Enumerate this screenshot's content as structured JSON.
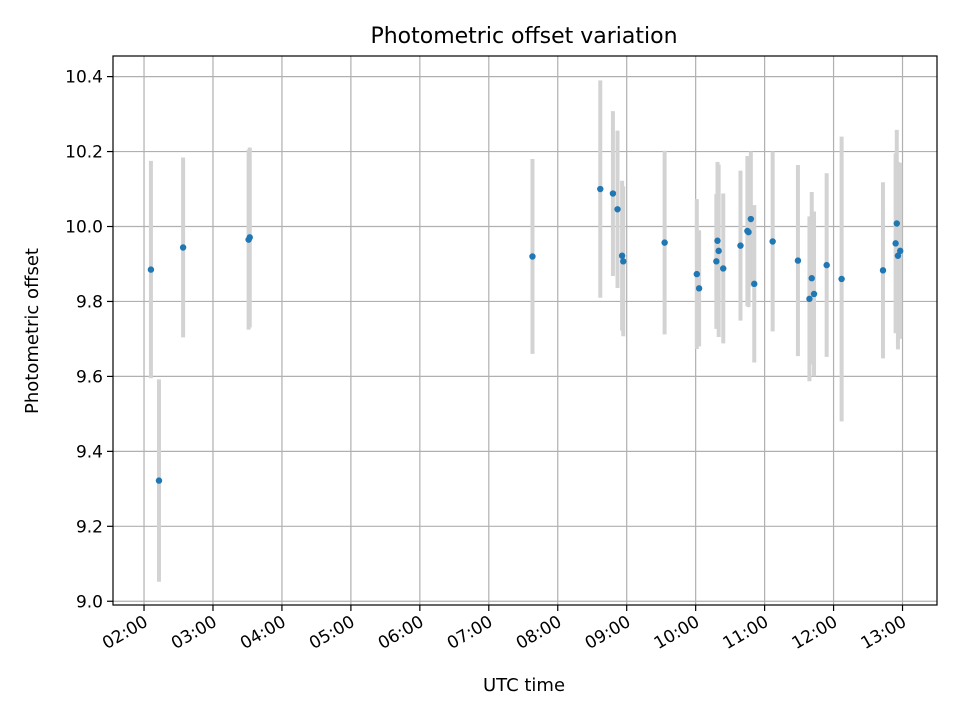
{
  "chart_data": {
    "type": "scatter",
    "title": "Photometric offset variation",
    "xlabel": "UTC time",
    "ylabel": "Photometric offset",
    "xlim": [
      "01:33",
      "13:30"
    ],
    "ylim": [
      8.99,
      10.455
    ],
    "x_ticks": [
      "02:00",
      "03:00",
      "04:00",
      "05:00",
      "06:00",
      "07:00",
      "08:00",
      "09:00",
      "10:00",
      "11:00",
      "12:00",
      "13:00"
    ],
    "y_ticks": [
      "9.0",
      "9.2",
      "9.4",
      "9.6",
      "9.8",
      "10.0",
      "10.2",
      "10.4"
    ],
    "grid": true,
    "point_color": "#1f77b4",
    "errorbar_color": "#d3d3d3",
    "points": [
      {
        "x": "02:06",
        "y": 9.885,
        "err": 0.29
      },
      {
        "x": "02:13",
        "y": 9.322,
        "err": 0.27
      },
      {
        "x": "02:34",
        "y": 9.944,
        "err": 0.24
      },
      {
        "x": "03:31",
        "y": 9.965,
        "err": 0.24
      },
      {
        "x": "03:32",
        "y": 9.971,
        "err": 0.24
      },
      {
        "x": "07:38",
        "y": 9.92,
        "err": 0.26
      },
      {
        "x": "08:37",
        "y": 10.1,
        "err": 0.29
      },
      {
        "x": "08:48",
        "y": 10.088,
        "err": 0.22
      },
      {
        "x": "08:52",
        "y": 10.046,
        "err": 0.21
      },
      {
        "x": "08:56",
        "y": 9.922,
        "err": 0.2
      },
      {
        "x": "08:57",
        "y": 9.907,
        "err": 0.2
      },
      {
        "x": "09:33",
        "y": 9.957,
        "err": 0.245
      },
      {
        "x": "10:01",
        "y": 9.873,
        "err": 0.2
      },
      {
        "x": "10:03",
        "y": 9.835,
        "err": 0.155
      },
      {
        "x": "10:18",
        "y": 9.907,
        "err": 0.18
      },
      {
        "x": "10:19",
        "y": 9.962,
        "err": 0.21
      },
      {
        "x": "10:20",
        "y": 9.935,
        "err": 0.23
      },
      {
        "x": "10:24",
        "y": 9.888,
        "err": 0.2
      },
      {
        "x": "10:39",
        "y": 9.949,
        "err": 0.2
      },
      {
        "x": "10:45",
        "y": 9.988,
        "err": 0.2
      },
      {
        "x": "10:46",
        "y": 9.985,
        "err": 0.2
      },
      {
        "x": "10:48",
        "y": 10.02,
        "err": 0.18
      },
      {
        "x": "10:51",
        "y": 9.847,
        "err": 0.21
      },
      {
        "x": "11:07",
        "y": 9.96,
        "err": 0.24
      },
      {
        "x": "11:29",
        "y": 9.909,
        "err": 0.255
      },
      {
        "x": "11:39",
        "y": 9.807,
        "err": 0.22
      },
      {
        "x": "11:41",
        "y": 9.862,
        "err": 0.23
      },
      {
        "x": "11:43",
        "y": 9.82,
        "err": 0.22
      },
      {
        "x": "11:54",
        "y": 9.897,
        "err": 0.245
      },
      {
        "x": "12:07",
        "y": 9.86,
        "err": 0.38
      },
      {
        "x": "12:43",
        "y": 9.883,
        "err": 0.235
      },
      {
        "x": "12:54",
        "y": 9.955,
        "err": 0.24
      },
      {
        "x": "12:55",
        "y": 10.008,
        "err": 0.25
      },
      {
        "x": "12:56",
        "y": 9.922,
        "err": 0.25
      },
      {
        "x": "12:58",
        "y": 9.935,
        "err": 0.235
      }
    ]
  }
}
